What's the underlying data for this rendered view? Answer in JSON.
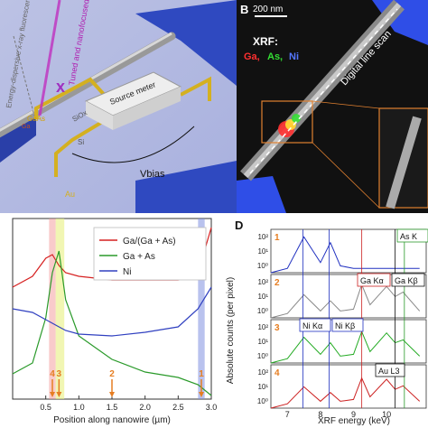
{
  "panel_a": {
    "beam_label": "Tuned and nanofocused x-ray beam",
    "detector_label": "Energy-dispersive x-ray fluorescence detector",
    "oxide_label": "SiOx",
    "substrate_label": "Si",
    "gaas_label": "GaAs",
    "ga_label": "Ga",
    "source_meter_label": "Source meter",
    "vbias_label": "Vbias",
    "au_label": "Au",
    "x_label": "x"
  },
  "panel_b": {
    "letter": "B",
    "scalebar_label": "200 nm",
    "xrf_title": "XRF:",
    "el_ga": "Ga,",
    "el_as": "As,",
    "el_ni": "Ni",
    "line_scan_label": "Digital line scan",
    "colors": {
      "ga": "#ff3030",
      "as": "#33dd33",
      "ni": "#5577ff"
    }
  },
  "panel_c": {
    "xlabel": "Position along nanowire (µm)",
    "xticks": [
      "0.5",
      "1.0",
      "1.5",
      "2.0",
      "2.5",
      "3.0"
    ],
    "legend": [
      "Ga/(Ga + As)",
      "Ga + As",
      "Ni"
    ],
    "markers": [
      {
        "label": "4",
        "x": 0.6
      },
      {
        "label": "3",
        "x": 0.7
      },
      {
        "label": "2",
        "x": 1.5
      },
      {
        "label": "1",
        "x": 2.85
      }
    ],
    "colors": {
      "ratio": "#d62020",
      "gaas": "#2a9a2a",
      "ni": "#3040c0",
      "marker": "#e67e22"
    }
  },
  "panel_d": {
    "letter": "D",
    "ylabel": "Absolute counts (per pixel)",
    "xlabel": "XRF energy (keV)",
    "xticks": [
      "7",
      "8",
      "9",
      "10"
    ],
    "row_labels": [
      "1",
      "2",
      "3",
      "4"
    ],
    "yticks": [
      "10²",
      "10¹",
      "10⁰"
    ],
    "peak_labels": {
      "as_ka": "As K",
      "ga_ka": "Ga Kα",
      "ga_kb": "Ga Kβ",
      "ni_ka": "Ni Kα",
      "ni_kb": "Ni Kβ",
      "au_l3": "Au L3"
    },
    "colors": {
      "row1": "#2030c0",
      "row2": "#888888",
      "row3": "#22aa22",
      "row4": "#cc2020"
    }
  },
  "chart_data": [
    {
      "type": "line",
      "x": [
        0.0,
        0.3,
        0.5,
        0.6,
        0.7,
        0.8,
        1.0,
        1.5,
        2.0,
        2.5,
        2.8,
        3.0
      ],
      "series": [
        {
          "name": "Ga/(Ga + As)",
          "values": [
            0.62,
            0.68,
            0.78,
            0.8,
            0.74,
            0.7,
            0.68,
            0.66,
            0.66,
            0.66,
            0.7,
            0.95
          ]
        },
        {
          "name": "Ga + As",
          "values": [
            0.14,
            0.2,
            0.45,
            0.7,
            0.82,
            0.55,
            0.35,
            0.22,
            0.15,
            0.12,
            0.08,
            0.02
          ]
        },
        {
          "name": "Ni",
          "values": [
            0.5,
            0.48,
            0.44,
            0.42,
            0.4,
            0.38,
            0.36,
            0.35,
            0.37,
            0.4,
            0.5,
            0.62
          ]
        }
      ],
      "xlabel": "Position along nanowire (µm)",
      "xlim": [
        0.0,
        3.0
      ]
    },
    {
      "type": "line",
      "xlabel": "XRF energy (keV)",
      "ylabel": "Absolute counts (per pixel)",
      "xlim": [
        6.5,
        11.2
      ],
      "x": [
        6.5,
        7.0,
        7.5,
        8.0,
        8.3,
        8.6,
        9.0,
        9.25,
        9.5,
        10.0,
        10.26,
        10.5,
        11.0
      ],
      "series": [
        {
          "name": "1",
          "values": [
            1,
            2,
            300,
            5,
            120,
            3,
            2,
            2,
            2,
            2,
            2,
            2,
            2
          ]
        },
        {
          "name": "2",
          "values": [
            1,
            2,
            40,
            3,
            15,
            3,
            4,
            200,
            8,
            150,
            30,
            60,
            3
          ]
        },
        {
          "name": "3",
          "values": [
            1,
            2,
            60,
            4,
            25,
            3,
            4,
            150,
            6,
            120,
            25,
            40,
            3
          ]
        },
        {
          "name": "4",
          "values": [
            1,
            2,
            30,
            3,
            12,
            3,
            4,
            120,
            6,
            100,
            20,
            35,
            3
          ]
        }
      ]
    }
  ]
}
